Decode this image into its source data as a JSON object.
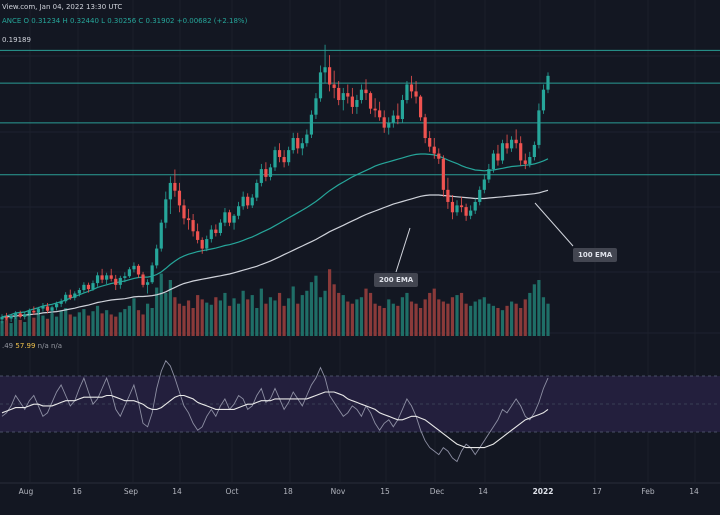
{
  "header": {
    "source_line": "View.com, Jan 04, 2022 13:30 UTC",
    "ohlc_line": "ANCE  O 0.31234  H 0.32440  L 0.30256  C 0.31902  +0.00682 (+2.18%)",
    "indicator_line": "0.19189",
    "rsi_line_prefix": ".49",
    "rsi_line_value": "57.99",
    "rsi_line_suffix": "n/a  n/a"
  },
  "annotations": {
    "ema200_label": "200 EMA",
    "ema100_label": "100 EMA"
  },
  "colors": {
    "background": "#131722",
    "up": "#26a69a",
    "down": "#ef5350",
    "support_line": "#2a9d95",
    "ema100": "#26a69a",
    "ema200": "#cfd2da",
    "rsi_band": "#231f3d",
    "rsi_line": "#8d8fa3",
    "rsi_ma": "#e8e8e8"
  },
  "chart_data": {
    "type": "candlestick",
    "x_tick_labels": [
      "Aug",
      "16",
      "Sep",
      "14",
      "Oct",
      "18",
      "Nov",
      "15",
      "Dec",
      "14",
      "2022",
      "17",
      "Feb",
      "14"
    ],
    "highlighted_tick": "2022",
    "horizontal_levels": [
      0.378,
      0.34,
      0.294,
      0.234
    ],
    "candles": [
      [
        0.0665,
        0.0725,
        0.062,
        0.0695
      ],
      [
        0.0695,
        0.074,
        0.0655,
        0.0675
      ],
      [
        0.0675,
        0.072,
        0.0635,
        0.0705
      ],
      [
        0.0705,
        0.076,
        0.067,
        0.0735
      ],
      [
        0.0735,
        0.0765,
        0.0675,
        0.0695
      ],
      [
        0.0695,
        0.0745,
        0.0665,
        0.0725
      ],
      [
        0.0725,
        0.079,
        0.07,
        0.0765
      ],
      [
        0.0765,
        0.0815,
        0.0715,
        0.0745
      ],
      [
        0.0745,
        0.081,
        0.0715,
        0.079
      ],
      [
        0.079,
        0.0855,
        0.0755,
        0.0815
      ],
      [
        0.0815,
        0.0855,
        0.0735,
        0.0765
      ],
      [
        0.0765,
        0.0825,
        0.073,
        0.0805
      ],
      [
        0.0805,
        0.087,
        0.077,
        0.0845
      ],
      [
        0.0845,
        0.0905,
        0.081,
        0.0875
      ],
      [
        0.0875,
        0.098,
        0.085,
        0.095
      ],
      [
        0.095,
        0.101,
        0.089,
        0.0915
      ],
      [
        0.0915,
        0.099,
        0.0885,
        0.0965
      ],
      [
        0.0965,
        0.103,
        0.093,
        0.1005
      ],
      [
        0.1005,
        0.1095,
        0.0975,
        0.1065
      ],
      [
        0.1065,
        0.109,
        0.0975,
        0.1015
      ],
      [
        0.1015,
        0.1115,
        0.0995,
        0.1085
      ],
      [
        0.1085,
        0.121,
        0.1045,
        0.1175
      ],
      [
        0.1175,
        0.125,
        0.1085,
        0.1125
      ],
      [
        0.1125,
        0.1205,
        0.1075,
        0.1175
      ],
      [
        0.1175,
        0.125,
        0.1105,
        0.1135
      ],
      [
        0.1135,
        0.118,
        0.1005,
        0.1065
      ],
      [
        0.1065,
        0.117,
        0.102,
        0.1145
      ],
      [
        0.1145,
        0.121,
        0.1095,
        0.1165
      ],
      [
        0.1165,
        0.127,
        0.1145,
        0.1245
      ],
      [
        0.1245,
        0.1325,
        0.121,
        0.1285
      ],
      [
        0.1285,
        0.1305,
        0.1145,
        0.1185
      ],
      [
        0.1185,
        0.1215,
        0.1035,
        0.1065
      ],
      [
        0.1065,
        0.113,
        0.0965,
        0.1095
      ],
      [
        0.1095,
        0.1325,
        0.1075,
        0.129
      ],
      [
        0.129,
        0.153,
        0.1255,
        0.1485
      ],
      [
        0.1485,
        0.182,
        0.145,
        0.1785
      ],
      [
        0.1785,
        0.2145,
        0.172,
        0.2055
      ],
      [
        0.2055,
        0.232,
        0.1885,
        0.2245
      ],
      [
        0.2245,
        0.24,
        0.2085,
        0.2155
      ],
      [
        0.2155,
        0.2245,
        0.1905,
        0.1985
      ],
      [
        0.1985,
        0.2055,
        0.1765,
        0.1835
      ],
      [
        0.1835,
        0.1945,
        0.1705,
        0.1815
      ],
      [
        0.1815,
        0.1885,
        0.1625,
        0.1685
      ],
      [
        0.1685,
        0.1775,
        0.1545,
        0.1585
      ],
      [
        0.1585,
        0.1615,
        0.1425,
        0.1485
      ],
      [
        0.1485,
        0.1635,
        0.1455,
        0.1595
      ],
      [
        0.1595,
        0.1755,
        0.1555,
        0.1705
      ],
      [
        0.1705,
        0.1765,
        0.1625,
        0.1665
      ],
      [
        0.1665,
        0.1825,
        0.1635,
        0.1785
      ],
      [
        0.1785,
        0.1955,
        0.1745,
        0.1905
      ],
      [
        0.1905,
        0.1935,
        0.1745,
        0.1785
      ],
      [
        0.1785,
        0.1885,
        0.1705,
        0.1865
      ],
      [
        0.1865,
        0.2025,
        0.1825,
        0.1975
      ],
      [
        0.1975,
        0.2145,
        0.1935,
        0.2085
      ],
      [
        0.2085,
        0.2125,
        0.1945,
        0.1985
      ],
      [
        0.1985,
        0.2115,
        0.1955,
        0.2075
      ],
      [
        0.2075,
        0.2285,
        0.2035,
        0.2245
      ],
      [
        0.2245,
        0.2465,
        0.2205,
        0.2405
      ],
      [
        0.2405,
        0.2485,
        0.2265,
        0.2315
      ],
      [
        0.2315,
        0.2465,
        0.2275,
        0.2425
      ],
      [
        0.2425,
        0.2665,
        0.2385,
        0.2625
      ],
      [
        0.2625,
        0.2705,
        0.2485,
        0.2545
      ],
      [
        0.2545,
        0.2625,
        0.2425,
        0.2485
      ],
      [
        0.2485,
        0.2665,
        0.2445,
        0.2625
      ],
      [
        0.2625,
        0.2825,
        0.2585,
        0.2765
      ],
      [
        0.2765,
        0.2825,
        0.2585,
        0.2645
      ],
      [
        0.2645,
        0.2765,
        0.2565,
        0.2705
      ],
      [
        0.2705,
        0.2865,
        0.2665,
        0.2805
      ],
      [
        0.2805,
        0.3085,
        0.2765,
        0.3035
      ],
      [
        0.3035,
        0.3285,
        0.2985,
        0.3225
      ],
      [
        0.3225,
        0.3605,
        0.3185,
        0.3525
      ],
      [
        0.3525,
        0.3845,
        0.3405,
        0.3585
      ],
      [
        0.3585,
        0.3725,
        0.3305,
        0.3385
      ],
      [
        0.3385,
        0.3545,
        0.3225,
        0.3345
      ],
      [
        0.3345,
        0.3425,
        0.3145,
        0.3205
      ],
      [
        0.3205,
        0.3345,
        0.3085,
        0.3285
      ],
      [
        0.3285,
        0.3385,
        0.3165,
        0.3245
      ],
      [
        0.3245,
        0.3345,
        0.3045,
        0.3125
      ],
      [
        0.3125,
        0.3265,
        0.3045,
        0.3205
      ],
      [
        0.3205,
        0.3385,
        0.3165,
        0.3325
      ],
      [
        0.3325,
        0.3445,
        0.3205,
        0.3285
      ],
      [
        0.3285,
        0.3305,
        0.3045,
        0.3105
      ],
      [
        0.3105,
        0.3225,
        0.3005,
        0.3085
      ],
      [
        0.3085,
        0.3185,
        0.2965,
        0.3005
      ],
      [
        0.3005,
        0.3085,
        0.2825,
        0.2885
      ],
      [
        0.2885,
        0.3005,
        0.2805,
        0.2945
      ],
      [
        0.2945,
        0.3085,
        0.2885,
        0.3025
      ],
      [
        0.3025,
        0.3165,
        0.2925,
        0.2985
      ],
      [
        0.2985,
        0.3265,
        0.2945,
        0.3205
      ],
      [
        0.3205,
        0.3425,
        0.3165,
        0.3385
      ],
      [
        0.3385,
        0.3485,
        0.3225,
        0.3305
      ],
      [
        0.3305,
        0.3425,
        0.3165,
        0.3245
      ],
      [
        0.3245,
        0.3265,
        0.2965,
        0.3005
      ],
      [
        0.3005,
        0.3045,
        0.2705,
        0.2765
      ],
      [
        0.2765,
        0.2845,
        0.2605,
        0.2665
      ],
      [
        0.2665,
        0.2765,
        0.2525,
        0.2585
      ],
      [
        0.2585,
        0.2645,
        0.2465,
        0.2525
      ],
      [
        0.2525,
        0.2565,
        0.2085,
        0.2165
      ],
      [
        0.2165,
        0.2305,
        0.1945,
        0.2025
      ],
      [
        0.2025,
        0.2105,
        0.1825,
        0.1905
      ],
      [
        0.1905,
        0.2045,
        0.1865,
        0.1985
      ],
      [
        0.1985,
        0.2085,
        0.1905,
        0.1965
      ],
      [
        0.1965,
        0.2005,
        0.1805,
        0.1865
      ],
      [
        0.1865,
        0.1985,
        0.1825,
        0.1925
      ],
      [
        0.1925,
        0.2065,
        0.1885,
        0.2025
      ],
      [
        0.2025,
        0.2205,
        0.1985,
        0.2165
      ],
      [
        0.2165,
        0.2345,
        0.2125,
        0.2285
      ],
      [
        0.2285,
        0.2465,
        0.2245,
        0.2405
      ],
      [
        0.2405,
        0.2625,
        0.2365,
        0.2585
      ],
      [
        0.2585,
        0.2685,
        0.2445,
        0.2505
      ],
      [
        0.2505,
        0.2745,
        0.2465,
        0.2705
      ],
      [
        0.2705,
        0.2805,
        0.2585,
        0.2645
      ],
      [
        0.2645,
        0.2785,
        0.2605,
        0.2745
      ],
      [
        0.2745,
        0.2865,
        0.2645,
        0.2705
      ],
      [
        0.2705,
        0.2785,
        0.2445,
        0.2505
      ],
      [
        0.2505,
        0.2585,
        0.2405,
        0.2465
      ],
      [
        0.2465,
        0.2605,
        0.2425,
        0.2545
      ],
      [
        0.2545,
        0.2725,
        0.2505,
        0.2685
      ],
      [
        0.2685,
        0.3165,
        0.2645,
        0.3085
      ],
      [
        0.3085,
        0.3385,
        0.3045,
        0.3325
      ],
      [
        0.3325,
        0.3525,
        0.3285,
        0.3485
      ]
    ],
    "ema100": [
      0.0695,
      0.0705,
      0.072,
      0.074,
      0.0745,
      0.075,
      0.077,
      0.0785,
      0.08,
      0.082,
      0.083,
      0.084,
      0.0855,
      0.087,
      0.089,
      0.091,
      0.093,
      0.095,
      0.097,
      0.099,
      0.101,
      0.1035,
      0.105,
      0.1065,
      0.108,
      0.109,
      0.11,
      0.111,
      0.1125,
      0.114,
      0.115,
      0.1155,
      0.1155,
      0.1165,
      0.1185,
      0.1215,
      0.1255,
      0.13,
      0.134,
      0.1375,
      0.14,
      0.142,
      0.1435,
      0.145,
      0.146,
      0.147,
      0.148,
      0.149,
      0.1505,
      0.152,
      0.153,
      0.1545,
      0.156,
      0.158,
      0.16,
      0.162,
      0.1645,
      0.167,
      0.1695,
      0.172,
      0.175,
      0.178,
      0.181,
      0.184,
      0.187,
      0.19,
      0.193,
      0.196,
      0.1995,
      0.203,
      0.207,
      0.2115,
      0.2155,
      0.219,
      0.2225,
      0.2255,
      0.2285,
      0.2315,
      0.234,
      0.2365,
      0.239,
      0.2415,
      0.244,
      0.246,
      0.2475,
      0.249,
      0.2505,
      0.252,
      0.2535,
      0.255,
      0.2565,
      0.2575,
      0.258,
      0.258,
      0.2575,
      0.257,
      0.2555,
      0.2535,
      0.251,
      0.249,
      0.247,
      0.2445,
      0.2425,
      0.241,
      0.2395,
      0.239,
      0.2385,
      0.239,
      0.2395,
      0.2405,
      0.2415,
      0.2425,
      0.2435,
      0.244,
      0.2445,
      0.245,
      0.2455,
      0.2465,
      0.248,
      0.25,
      0.2525
    ],
    "ema200": [
      0.0695,
      0.0695,
      0.07,
      0.0705,
      0.071,
      0.0715,
      0.072,
      0.0725,
      0.073,
      0.074,
      0.0745,
      0.075,
      0.0755,
      0.0765,
      0.0775,
      0.0785,
      0.0795,
      0.081,
      0.082,
      0.083,
      0.0845,
      0.086,
      0.087,
      0.088,
      0.089,
      0.0895,
      0.09,
      0.0905,
      0.0915,
      0.0925,
      0.093,
      0.093,
      0.0935,
      0.094,
      0.095,
      0.0965,
      0.0985,
      0.101,
      0.1035,
      0.106,
      0.108,
      0.1095,
      0.111,
      0.112,
      0.113,
      0.114,
      0.115,
      0.116,
      0.117,
      0.118,
      0.119,
      0.1205,
      0.122,
      0.1235,
      0.125,
      0.1265,
      0.128,
      0.13,
      0.132,
      0.134,
      0.1365,
      0.139,
      0.1415,
      0.144,
      0.1465,
      0.149,
      0.1515,
      0.154,
      0.1565,
      0.159,
      0.162,
      0.165,
      0.168,
      0.1705,
      0.173,
      0.1755,
      0.178,
      0.1805,
      0.183,
      0.1855,
      0.188,
      0.19,
      0.192,
      0.194,
      0.196,
      0.198,
      0.2,
      0.2015,
      0.203,
      0.2045,
      0.206,
      0.2075,
      0.209,
      0.21,
      0.2105,
      0.2105,
      0.2105,
      0.21,
      0.2095,
      0.209,
      0.2085,
      0.208,
      0.2075,
      0.207,
      0.2065,
      0.2065,
      0.2065,
      0.207,
      0.2075,
      0.208,
      0.2085,
      0.209,
      0.2095,
      0.21,
      0.2105,
      0.211,
      0.2115,
      0.212,
      0.213,
      0.2145,
      0.216
    ],
    "volume": [
      14,
      16,
      12,
      18,
      15,
      13,
      20,
      17,
      22,
      19,
      16,
      21,
      18,
      24,
      26,
      20,
      18,
      22,
      25,
      19,
      23,
      28,
      21,
      24,
      20,
      18,
      22,
      25,
      28,
      35,
      24,
      20,
      30,
      26,
      45,
      58,
      40,
      52,
      36,
      30,
      28,
      33,
      26,
      38,
      34,
      31,
      29,
      36,
      33,
      40,
      28,
      35,
      30,
      42,
      34,
      38,
      26,
      44,
      30,
      36,
      33,
      40,
      28,
      35,
      46,
      30,
      38,
      42,
      50,
      56,
      36,
      42,
      62,
      48,
      40,
      38,
      32,
      30,
      34,
      36,
      44,
      40,
      30,
      28,
      26,
      34,
      30,
      28,
      36,
      40,
      32,
      30,
      26,
      34,
      40,
      44,
      34,
      32,
      30,
      36,
      38,
      40,
      30,
      28,
      32,
      34,
      36,
      30,
      28,
      26,
      24,
      28,
      32,
      30,
      26,
      34,
      40,
      48,
      52,
      36,
      30,
      42
    ],
    "rsi": [
      48,
      50,
      54,
      60,
      56,
      52,
      57,
      60,
      54,
      48,
      50,
      56,
      62,
      66,
      60,
      54,
      57,
      64,
      70,
      62,
      55,
      58,
      64,
      70,
      62,
      52,
      48,
      54,
      60,
      66,
      56,
      44,
      42,
      50,
      64,
      74,
      80,
      77,
      70,
      62,
      54,
      50,
      44,
      40,
      42,
      48,
      52,
      48,
      54,
      58,
      52,
      55,
      60,
      58,
      52,
      54,
      60,
      64,
      56,
      58,
      64,
      58,
      52,
      56,
      62,
      58,
      54,
      60,
      66,
      70,
      76,
      70,
      60,
      56,
      52,
      48,
      50,
      54,
      52,
      48,
      54,
      50,
      44,
      40,
      44,
      46,
      42,
      46,
      52,
      58,
      54,
      48,
      40,
      34,
      30,
      28,
      26,
      30,
      28,
      24,
      22,
      28,
      32,
      30,
      26,
      30,
      34,
      38,
      42,
      46,
      52,
      50,
      54,
      58,
      54,
      48,
      46,
      50,
      56,
      64,
      70
    ],
    "rsi_ma": [
      50,
      51,
      52,
      53,
      53,
      53,
      54,
      55,
      55,
      54,
      54,
      54,
      55,
      56,
      57,
      57,
      57,
      58,
      59,
      59,
      59,
      59,
      59,
      60,
      60,
      59,
      58,
      57,
      57,
      57,
      56,
      55,
      53,
      52,
      52,
      53,
      55,
      57,
      59,
      60,
      60,
      59,
      58,
      56,
      55,
      54,
      53,
      52,
      52,
      52,
      52,
      52,
      53,
      54,
      55,
      55,
      56,
      57,
      57,
      57,
      58,
      58,
      58,
      58,
      58,
      58,
      58,
      58,
      59,
      60,
      61,
      62,
      62,
      62,
      61,
      60,
      58,
      57,
      56,
      55,
      54,
      53,
      52,
      50,
      49,
      48,
      47,
      46,
      46,
      47,
      48,
      48,
      47,
      46,
      44,
      42,
      40,
      38,
      36,
      34,
      32,
      31,
      30,
      30,
      30,
      30,
      30,
      31,
      32,
      34,
      36,
      38,
      40,
      42,
      44,
      46,
      47,
      48,
      49,
      50,
      52
    ]
  }
}
